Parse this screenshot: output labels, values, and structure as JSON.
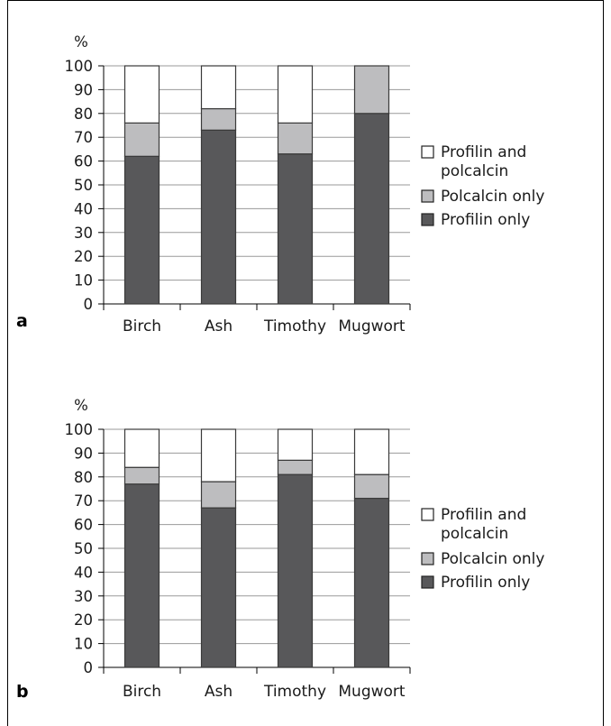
{
  "colors": {
    "profilin_only": "#58585a",
    "polcalcin_only": "#bdbdbf",
    "profilin_and_polcalcin": "#ffffff",
    "edge": "#3a3a3a",
    "grid": "#9a9a9a"
  },
  "chart_data": [
    {
      "type": "bar",
      "stacked": true,
      "panel_label": "a",
      "ylabel": "%",
      "ylim": [
        0,
        100
      ],
      "yticks": [
        0,
        10,
        20,
        30,
        40,
        50,
        60,
        70,
        80,
        90,
        100
      ],
      "categories": [
        "Birch",
        "Ash",
        "Timothy",
        "Mugwort"
      ],
      "series": [
        {
          "name": "Profilin only",
          "values": [
            62,
            73,
            63,
            80
          ]
        },
        {
          "name": "Polcalcin only",
          "values": [
            14,
            9,
            13,
            20
          ]
        },
        {
          "name": "Profilin and polcalcin",
          "values": [
            24,
            18,
            24,
            0
          ]
        }
      ],
      "legend_lines": [
        [
          "Profilin and",
          "polcalcin"
        ],
        [
          "Polcalcin only"
        ],
        [
          "Profilin only"
        ]
      ],
      "grid": true,
      "legend_position": "right"
    },
    {
      "type": "bar",
      "stacked": true,
      "panel_label": "b",
      "ylabel": "%",
      "ylim": [
        0,
        100
      ],
      "yticks": [
        0,
        10,
        20,
        30,
        40,
        50,
        60,
        70,
        80,
        90,
        100
      ],
      "categories": [
        "Birch",
        "Ash",
        "Timothy",
        "Mugwort"
      ],
      "series": [
        {
          "name": "Profilin only",
          "values": [
            77,
            67,
            81,
            71
          ]
        },
        {
          "name": "Polcalcin only",
          "values": [
            7,
            11,
            6,
            10
          ]
        },
        {
          "name": "Profilin and polcalcin",
          "values": [
            16,
            22,
            13,
            19
          ]
        }
      ],
      "legend_lines": [
        [
          "Profilin and",
          "polcalcin"
        ],
        [
          "Polcalcin only"
        ],
        [
          "Profilin only"
        ]
      ],
      "grid": true,
      "legend_position": "right"
    }
  ]
}
